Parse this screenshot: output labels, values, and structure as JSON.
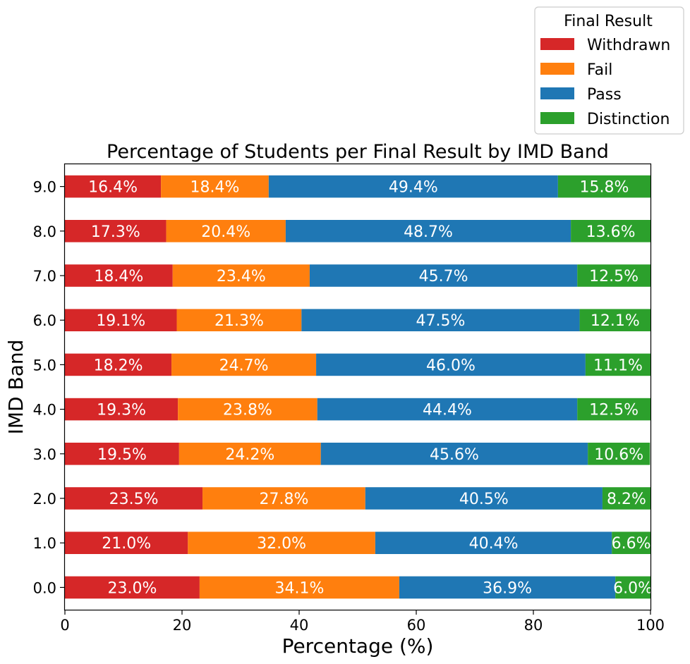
{
  "chart_data": {
    "type": "bar",
    "orientation": "horizontal",
    "stacked": true,
    "title": "Percentage of Students per Final Result by IMD Band",
    "xlabel": "Percentage (%)",
    "ylabel": "IMD Band",
    "xlim": [
      0,
      100
    ],
    "xticks": [
      0,
      20,
      40,
      60,
      80,
      100
    ],
    "grid": false,
    "legend": {
      "title": "Final Result",
      "placement": "top-right, above plot"
    },
    "categories": [
      "0.0",
      "1.0",
      "2.0",
      "3.0",
      "4.0",
      "5.0",
      "6.0",
      "7.0",
      "8.0",
      "9.0"
    ],
    "series": [
      {
        "name": "Withdrawn",
        "color": "#d62728",
        "values": [
          23.0,
          21.0,
          23.5,
          19.5,
          19.3,
          18.2,
          19.1,
          18.4,
          17.3,
          16.4
        ]
      },
      {
        "name": "Fail",
        "color": "#ff7f0e",
        "values": [
          34.1,
          32.0,
          27.8,
          24.2,
          23.8,
          24.7,
          21.3,
          23.4,
          20.4,
          18.4
        ]
      },
      {
        "name": "Pass",
        "color": "#1f77b4",
        "values": [
          36.9,
          40.4,
          40.5,
          45.6,
          44.4,
          46.0,
          47.5,
          45.7,
          48.7,
          49.4
        ]
      },
      {
        "name": "Distinction",
        "color": "#2ca02c",
        "values": [
          6.0,
          6.6,
          8.2,
          10.6,
          12.5,
          11.1,
          12.1,
          12.5,
          13.6,
          15.8
        ]
      }
    ],
    "data_label_format": "percent, 1 decimal"
  }
}
